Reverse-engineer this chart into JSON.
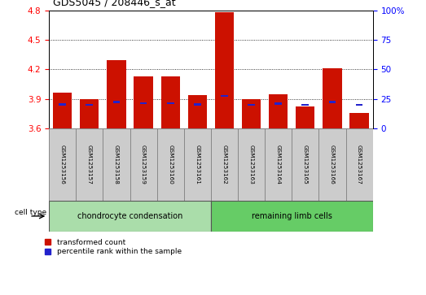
{
  "title": "GDS5045 / 208446_s_at",
  "samples": [
    "GSM1253156",
    "GSM1253157",
    "GSM1253158",
    "GSM1253159",
    "GSM1253160",
    "GSM1253161",
    "GSM1253162",
    "GSM1253163",
    "GSM1253164",
    "GSM1253165",
    "GSM1253166",
    "GSM1253167"
  ],
  "red_values": [
    3.96,
    3.9,
    4.29,
    4.13,
    4.13,
    3.94,
    4.78,
    3.9,
    3.95,
    3.82,
    4.21,
    3.76
  ],
  "blue_values": [
    3.845,
    3.84,
    3.87,
    3.855,
    3.855,
    3.845,
    3.93,
    3.84,
    3.85,
    3.84,
    3.87,
    3.84
  ],
  "ymin": 3.6,
  "ymax": 4.8,
  "yticks_red": [
    3.6,
    3.9,
    4.2,
    4.5,
    4.8
  ],
  "yticks_blue": [
    0,
    25,
    50,
    75,
    100
  ],
  "group1_label": "chondrocyte condensation",
  "group2_label": "remaining limb cells",
  "group1_indices": [
    0,
    1,
    2,
    3,
    4,
    5
  ],
  "group2_indices": [
    6,
    7,
    8,
    9,
    10,
    11
  ],
  "cell_type_label": "cell type",
  "legend_red": "transformed count",
  "legend_blue": "percentile rank within the sample",
  "bar_color_red": "#cc1100",
  "bar_color_blue": "#2222cc",
  "group1_bg": "#aaddaa",
  "group2_bg": "#66cc66",
  "sample_bg": "#cccccc",
  "bar_width": 0.7
}
